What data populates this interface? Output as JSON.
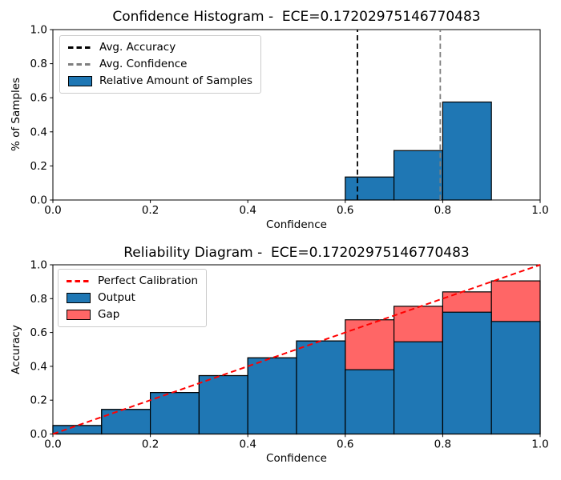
{
  "colors": {
    "background": "#ffffff",
    "bar_blue": "#1f77b4",
    "gap_red": "#ff6666",
    "perfect_line": "#ff0000",
    "avg_accuracy_line": "#000000",
    "avg_confidence_line": "#7f7f7f",
    "edge": "#000000",
    "legend_border": "#cccccc"
  },
  "chart_data": [
    {
      "type": "bar",
      "name": "confidence_histogram",
      "title": "Confidence Histogram -  ECE=0.17202975146770483",
      "ece": "0.17202975146770483",
      "xlabel": "Confidence",
      "ylabel": "% of Samples",
      "xlim": [
        0.0,
        1.0
      ],
      "ylim": [
        0.0,
        1.0
      ],
      "grid": false,
      "legend_position": "upper left",
      "xticks": [
        0.0,
        0.2,
        0.4,
        0.6,
        0.8,
        1.0
      ],
      "yticks": [
        0.0,
        0.2,
        0.4,
        0.6,
        0.8,
        1.0
      ],
      "xtick_labels": [
        "0.0",
        "0.2",
        "0.4",
        "0.6",
        "0.8",
        "1.0"
      ],
      "ytick_labels": [
        "0.0",
        "0.2",
        "0.4",
        "0.6",
        "0.8",
        "1.0"
      ],
      "bin_width": 0.1,
      "bins": [
        {
          "range": [
            0.6,
            0.7
          ],
          "value": 0.135
        },
        {
          "range": [
            0.7,
            0.8
          ],
          "value": 0.29
        },
        {
          "range": [
            0.8,
            0.9
          ],
          "value": 0.575
        }
      ],
      "avg_accuracy": 0.625,
      "avg_confidence": 0.795,
      "legend": [
        {
          "label": "Avg. Accuracy",
          "swatch": "dashed-black-line"
        },
        {
          "label": "Avg. Confidence",
          "swatch": "dashed-gray-line"
        },
        {
          "label": "Relative Amount of Samples",
          "swatch": "blue-patch"
        }
      ]
    },
    {
      "type": "bar",
      "name": "reliability_diagram",
      "title": "Reliability Diagram -  ECE=0.17202975146770483",
      "ece": "0.17202975146770483",
      "xlabel": "Confidence",
      "ylabel": "Accuracy",
      "xlim": [
        0.0,
        1.0
      ],
      "ylim": [
        0.0,
        1.0
      ],
      "grid": false,
      "legend_position": "upper left",
      "xticks": [
        0.0,
        0.2,
        0.4,
        0.6,
        0.8,
        1.0
      ],
      "yticks": [
        0.0,
        0.2,
        0.4,
        0.6,
        0.8,
        1.0
      ],
      "xtick_labels": [
        "0.0",
        "0.2",
        "0.4",
        "0.6",
        "0.8",
        "1.0"
      ],
      "ytick_labels": [
        "0.0",
        "0.2",
        "0.4",
        "0.6",
        "0.8",
        "1.0"
      ],
      "bin_width": 0.1,
      "perfect_calibration": {
        "x": [
          0.0,
          1.0
        ],
        "y": [
          0.0,
          1.0
        ]
      },
      "bins": [
        {
          "range": [
            0.0,
            0.1
          ],
          "output": 0.05,
          "confidence": 0.05
        },
        {
          "range": [
            0.1,
            0.2
          ],
          "output": 0.145,
          "confidence": 0.145
        },
        {
          "range": [
            0.2,
            0.3
          ],
          "output": 0.245,
          "confidence": 0.245
        },
        {
          "range": [
            0.3,
            0.4
          ],
          "output": 0.345,
          "confidence": 0.345
        },
        {
          "range": [
            0.4,
            0.5
          ],
          "output": 0.45,
          "confidence": 0.45
        },
        {
          "range": [
            0.5,
            0.6
          ],
          "output": 0.55,
          "confidence": 0.55
        },
        {
          "range": [
            0.6,
            0.7
          ],
          "output": 0.38,
          "confidence": 0.675
        },
        {
          "range": [
            0.7,
            0.8
          ],
          "output": 0.545,
          "confidence": 0.755
        },
        {
          "range": [
            0.8,
            0.9
          ],
          "output": 0.72,
          "confidence": 0.84
        },
        {
          "range": [
            0.9,
            1.0
          ],
          "output": 0.665,
          "confidence": 0.905
        }
      ],
      "legend": [
        {
          "label": "Perfect Calibration",
          "swatch": "dashed-red-line"
        },
        {
          "label": "Output",
          "swatch": "blue-patch"
        },
        {
          "label": "Gap",
          "swatch": "red-patch"
        }
      ]
    }
  ]
}
